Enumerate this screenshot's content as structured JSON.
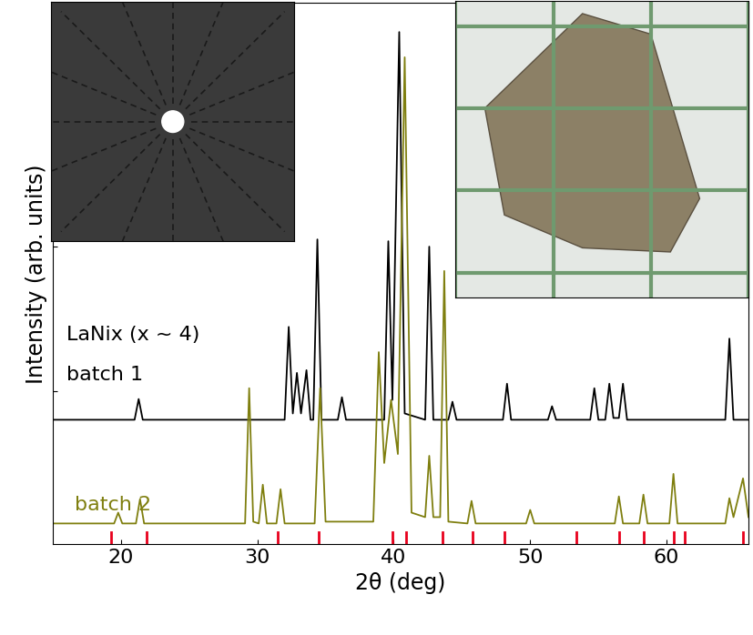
{
  "chart_data": {
    "type": "line",
    "x_label": "2θ (deg)",
    "y_label": "Intensity (arb. units)",
    "annotations": [
      "LaNix (x ~ 4)"
    ],
    "xlim": [
      15,
      66
    ],
    "xticks": [
      20,
      30,
      40,
      50,
      60
    ],
    "ylim": [
      0,
      6
    ],
    "yticks": [
      1.7,
      3.3
    ],
    "tick_labels": "x",
    "grid": false,
    "series": [
      {
        "name": "batch 1",
        "color": "#000000",
        "x": [
          15.0,
          21.0,
          21.3,
          21.6,
          32.0,
          32.3,
          32.6,
          32.9,
          33.2,
          33.6,
          33.9,
          34.1,
          34.4,
          34.7,
          35.9,
          36.2,
          36.5,
          39.3,
          39.6,
          39.9,
          40.4,
          40.8,
          42.3,
          42.6,
          42.9,
          44.0,
          44.3,
          44.6,
          48.0,
          48.3,
          48.6,
          51.3,
          51.6,
          51.9,
          54.4,
          54.7,
          55.0,
          55.5,
          55.8,
          56.1,
          56.5,
          56.8,
          57.1,
          64.3,
          64.6,
          64.9,
          66.0
        ],
        "values": [
          1.38,
          1.38,
          1.61,
          1.38,
          1.38,
          2.41,
          1.45,
          1.9,
          1.45,
          1.93,
          1.38,
          1.38,
          3.38,
          1.38,
          1.38,
          1.63,
          1.38,
          1.38,
          3.36,
          1.6,
          5.68,
          1.45,
          1.38,
          3.3,
          1.38,
          1.38,
          1.58,
          1.38,
          1.38,
          1.78,
          1.38,
          1.38,
          1.53,
          1.38,
          1.38,
          1.73,
          1.38,
          1.38,
          1.78,
          1.4,
          1.4,
          1.78,
          1.38,
          1.38,
          2.28,
          1.38,
          1.38
        ]
      },
      {
        "name": "batch 2",
        "color": "#7f7f0f",
        "x": [
          15.0,
          19.5,
          19.8,
          20.1,
          21.1,
          21.4,
          21.7,
          29.1,
          29.4,
          29.7,
          30.1,
          30.4,
          30.7,
          31.4,
          31.7,
          32.0,
          34.2,
          34.6,
          35.0,
          38.5,
          38.9,
          39.3,
          39.8,
          40.3,
          40.8,
          41.3,
          42.3,
          42.6,
          42.9,
          43.4,
          43.7,
          44.0,
          45.4,
          45.7,
          46.0,
          49.7,
          50.0,
          50.3,
          56.2,
          56.5,
          56.8,
          58.0,
          58.3,
          58.6,
          60.2,
          60.5,
          60.8,
          64.3,
          64.6,
          64.9,
          65.6,
          66.0
        ],
        "values": [
          0.23,
          0.23,
          0.35,
          0.23,
          0.23,
          0.5,
          0.23,
          0.23,
          1.73,
          0.25,
          0.23,
          0.66,
          0.23,
          0.23,
          0.61,
          0.23,
          0.23,
          1.73,
          0.25,
          0.25,
          2.13,
          0.9,
          1.6,
          1.0,
          5.4,
          0.35,
          0.3,
          0.98,
          0.3,
          0.3,
          3.03,
          0.25,
          0.23,
          0.48,
          0.23,
          0.23,
          0.38,
          0.23,
          0.23,
          0.53,
          0.23,
          0.23,
          0.55,
          0.23,
          0.23,
          0.78,
          0.23,
          0.23,
          0.51,
          0.3,
          0.73,
          0.3
        ]
      }
    ],
    "reference_positions": [
      19.3,
      21.9,
      31.5,
      34.5,
      39.9,
      40.9,
      43.6,
      45.8,
      48.1,
      53.4,
      56.5,
      58.3,
      60.5,
      61.3,
      65.6
    ],
    "reference_color": "#e8001c"
  }
}
